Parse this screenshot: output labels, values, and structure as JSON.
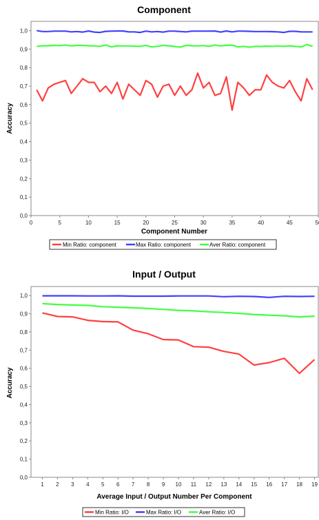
{
  "chart_data": [
    {
      "type": "line",
      "title": "Component",
      "xlabel": "Component Number",
      "ylabel": "Accuracy",
      "xlim": [
        0,
        50
      ],
      "ylim": [
        0,
        1.05
      ],
      "x_ticks": [
        "0",
        "5",
        "10",
        "15",
        "20",
        "25",
        "30",
        "35",
        "40",
        "45",
        "50"
      ],
      "y_ticks": [
        "0,0",
        "0,1",
        "0,2",
        "0,3",
        "0,4",
        "0,5",
        "0,6",
        "0,7",
        "0,8",
        "0,9",
        "1,0"
      ],
      "legend_position": "bottom",
      "grid": false,
      "x": [
        1,
        2,
        3,
        4,
        5,
        6,
        7,
        8,
        9,
        10,
        11,
        12,
        13,
        14,
        15,
        16,
        17,
        18,
        19,
        20,
        21,
        22,
        23,
        24,
        25,
        26,
        27,
        28,
        29,
        30,
        31,
        32,
        33,
        34,
        35,
        36,
        37,
        38,
        39,
        40,
        41,
        42,
        43,
        44,
        45,
        46,
        47,
        48,
        49
      ],
      "series": [
        {
          "name": "Min Ratio: component",
          "color": "#ff4040",
          "values": [
            0.68,
            0.62,
            0.69,
            0.71,
            0.72,
            0.73,
            0.66,
            0.7,
            0.74,
            0.72,
            0.72,
            0.67,
            0.7,
            0.66,
            0.72,
            0.63,
            0.71,
            0.68,
            0.65,
            0.73,
            0.71,
            0.64,
            0.7,
            0.71,
            0.65,
            0.7,
            0.65,
            0.68,
            0.77,
            0.69,
            0.72,
            0.65,
            0.66,
            0.75,
            0.57,
            0.72,
            0.69,
            0.65,
            0.68,
            0.68,
            0.76,
            0.72,
            0.7,
            0.69,
            0.73,
            0.67,
            0.62,
            0.74,
            0.68
          ]
        },
        {
          "name": "Max Ratio: component",
          "color": "#4040ff",
          "values": [
            1.0,
            0.995,
            0.995,
            0.997,
            0.997,
            0.997,
            0.993,
            0.995,
            0.992,
            0.998,
            0.992,
            0.99,
            0.996,
            0.997,
            0.998,
            0.998,
            0.993,
            0.993,
            0.99,
            0.997,
            0.993,
            0.995,
            0.992,
            0.997,
            0.997,
            0.995,
            0.993,
            0.997,
            0.997,
            0.997,
            0.997,
            0.998,
            0.992,
            0.998,
            0.993,
            0.997,
            0.997,
            0.996,
            0.995,
            0.995,
            0.995,
            0.994,
            0.993,
            0.99,
            0.996,
            0.996,
            0.993,
            0.993,
            0.993
          ]
        },
        {
          "name": "Aver Ratio: component",
          "color": "#40ff40",
          "values": [
            0.915,
            0.918,
            0.918,
            0.92,
            0.919,
            0.922,
            0.917,
            0.92,
            0.92,
            0.918,
            0.917,
            0.915,
            0.922,
            0.912,
            0.918,
            0.917,
            0.917,
            0.916,
            0.915,
            0.92,
            0.912,
            0.915,
            0.92,
            0.918,
            0.914,
            0.911,
            0.92,
            0.918,
            0.917,
            0.919,
            0.915,
            0.922,
            0.917,
            0.92,
            0.922,
            0.912,
            0.915,
            0.91,
            0.915,
            0.914,
            0.916,
            0.915,
            0.917,
            0.915,
            0.918,
            0.915,
            0.912,
            0.925,
            0.915
          ]
        }
      ]
    },
    {
      "type": "line",
      "title": "Input / Output",
      "xlabel": "Average Input / Output Number Per Component",
      "ylabel": "Accuracy",
      "xlim": [
        0.25,
        19.25
      ],
      "ylim": [
        0,
        1.05
      ],
      "x_ticks": [
        "1",
        "2",
        "3",
        "4",
        "5",
        "6",
        "7",
        "8",
        "9",
        "10",
        "11",
        "12",
        "13",
        "14",
        "15",
        "16",
        "17",
        "18",
        "19"
      ],
      "y_ticks": [
        "0,0",
        "0,1",
        "0,2",
        "0,3",
        "0,4",
        "0,5",
        "0,6",
        "0,7",
        "0,8",
        "0,9",
        "1,0"
      ],
      "legend_position": "bottom",
      "grid": false,
      "x": [
        1,
        2,
        3,
        4,
        5,
        6,
        7,
        8,
        9,
        10,
        11,
        12,
        13,
        14,
        15,
        16,
        17,
        18,
        19
      ],
      "series": [
        {
          "name": "Min Ratio: I/O",
          "color": "#ff4040",
          "values": [
            0.905,
            0.885,
            0.883,
            0.864,
            0.857,
            0.855,
            0.81,
            0.79,
            0.758,
            0.756,
            0.719,
            0.716,
            0.693,
            0.678,
            0.618,
            0.631,
            0.655,
            0.572,
            0.648
          ]
        },
        {
          "name": "Max Ratio: I/O",
          "color": "#4040ff",
          "values": [
            0.999,
            0.999,
            0.999,
            0.998,
            0.998,
            0.999,
            0.997,
            0.997,
            0.997,
            0.998,
            0.998,
            0.998,
            0.994,
            0.996,
            0.995,
            0.99,
            0.996,
            0.995,
            0.996
          ]
        },
        {
          "name": "Aver Ratio: I/O",
          "color": "#40ff40",
          "values": [
            0.956,
            0.951,
            0.948,
            0.946,
            0.939,
            0.936,
            0.933,
            0.929,
            0.924,
            0.919,
            0.916,
            0.911,
            0.907,
            0.902,
            0.896,
            0.892,
            0.889,
            0.883,
            0.887
          ]
        }
      ]
    }
  ]
}
